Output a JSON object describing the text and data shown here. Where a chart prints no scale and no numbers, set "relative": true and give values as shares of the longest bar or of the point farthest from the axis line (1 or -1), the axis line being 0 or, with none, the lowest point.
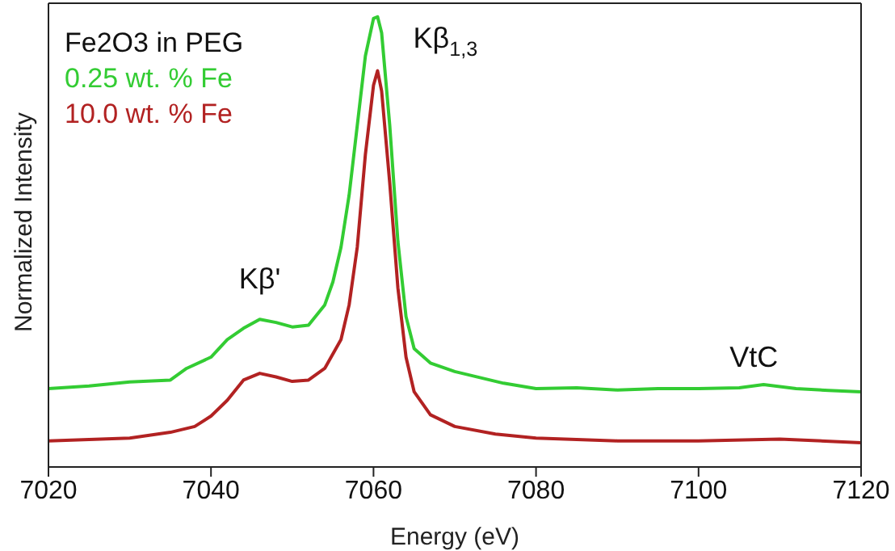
{
  "chart_data": {
    "type": "line",
    "relative": true,
    "xlabel": "Energy (eV)",
    "ylabel": "Normalized Intensity",
    "legend_title": "Fe2O3 in PEG",
    "legend": "top left",
    "marker": "none",
    "line_style": "solid",
    "grid": false,
    "xlim": [
      7020,
      7120
    ],
    "xticks": [
      7020,
      7040,
      7060,
      7080,
      7100,
      7120
    ],
    "annotations": [
      {
        "text": "Kβ'",
        "x": 7046,
        "y": 0.328
      },
      {
        "text": "Kβ$_{1,3}$",
        "x": 7060.5,
        "y": 1
      },
      {
        "text": "VtC",
        "x": 7108,
        "y": 0.183
      }
    ],
    "series": [
      {
        "name": "0.25 wt. % Fe",
        "color": "#33cc33",
        "x": [
          7020,
          7025,
          7030,
          7035,
          7037,
          7040,
          7042,
          7044,
          7046,
          7048,
          7050,
          7052,
          7054,
          7055,
          7056,
          7057,
          7058,
          7059,
          7060,
          7060.5,
          7061,
          7062,
          7063,
          7064,
          7065,
          7067,
          7070,
          7073,
          7076,
          7080,
          7085,
          7090,
          7095,
          7100,
          7105,
          7108,
          7112,
          7116,
          7120
        ],
        "values": [
          0.174,
          0.18,
          0.189,
          0.193,
          0.219,
          0.244,
          0.283,
          0.308,
          0.328,
          0.321,
          0.311,
          0.315,
          0.36,
          0.411,
          0.488,
          0.604,
          0.758,
          0.913,
          0.996,
          1,
          0.964,
          0.758,
          0.501,
          0.334,
          0.263,
          0.231,
          0.212,
          0.199,
          0.186,
          0.174,
          0.176,
          0.171,
          0.174,
          0.174,
          0.176,
          0.183,
          0.174,
          0.17,
          0.167
        ]
      },
      {
        "name": "10.0 wt. % Fe",
        "color": "#b22222",
        "x": [
          7020,
          7030,
          7035,
          7038,
          7040,
          7042,
          7044,
          7046,
          7048,
          7050,
          7052,
          7054,
          7056,
          7057,
          7058,
          7059,
          7060,
          7060.5,
          7061,
          7062,
          7063,
          7064,
          7065,
          7067,
          7070,
          7075,
          7080,
          7090,
          7100,
          7110,
          7120
        ],
        "values": [
          0.058,
          0.064,
          0.077,
          0.09,
          0.113,
          0.148,
          0.193,
          0.208,
          0.2,
          0.19,
          0.193,
          0.219,
          0.283,
          0.36,
          0.488,
          0.694,
          0.848,
          0.88,
          0.835,
          0.63,
          0.398,
          0.244,
          0.167,
          0.116,
          0.09,
          0.073,
          0.064,
          0.058,
          0.058,
          0.062,
          0.054
        ]
      }
    ]
  }
}
